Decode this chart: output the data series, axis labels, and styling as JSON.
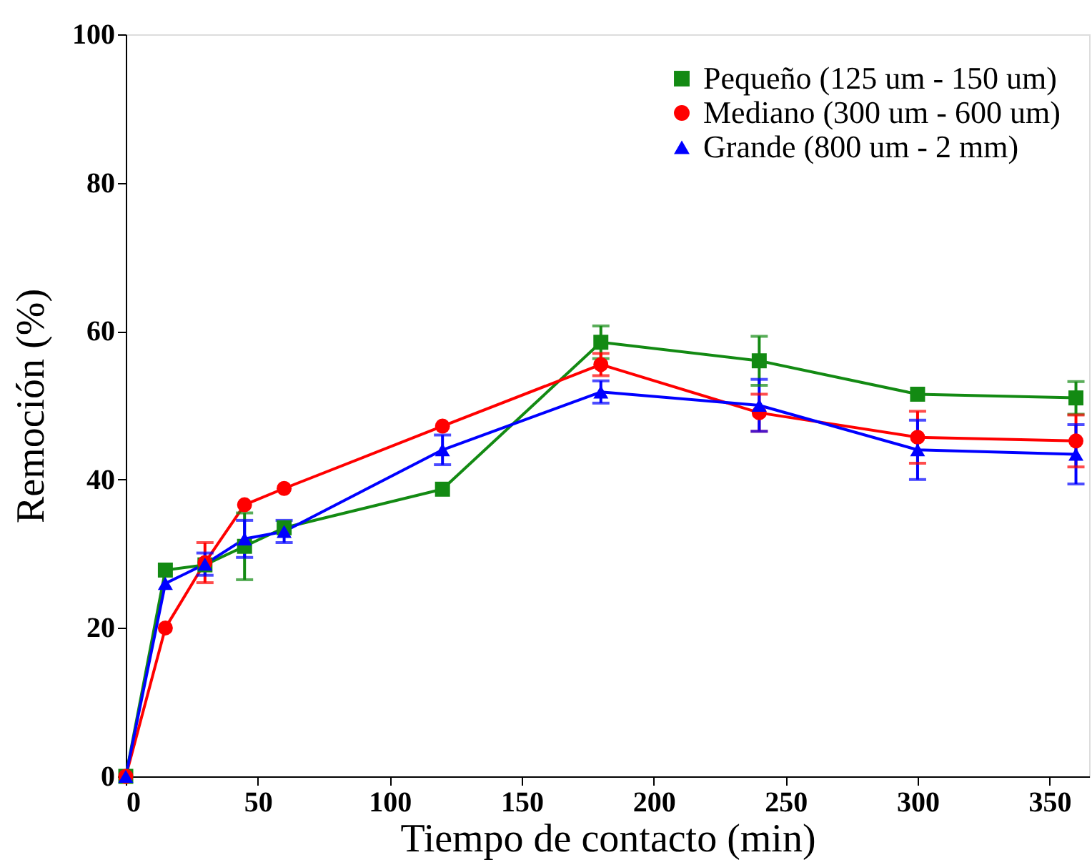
{
  "chart_data": {
    "type": "line",
    "xlabel": "Tiempo de contacto (min)",
    "ylabel": "Remoción (%)",
    "x": [
      0,
      15,
      30,
      45,
      60,
      120,
      180,
      240,
      300,
      360
    ],
    "xlim": [
      0,
      365
    ],
    "xticks": [
      0,
      50,
      100,
      150,
      200,
      250,
      300,
      350
    ],
    "ylim": [
      0,
      100
    ],
    "yticks": [
      0,
      20,
      40,
      60,
      80,
      100
    ],
    "grid": false,
    "legend": "top right",
    "line_style": "solid",
    "series": [
      {
        "name": "Pequeño (125 um - 150 um)",
        "color": "#138a13",
        "marker": "square",
        "values": [
          0,
          27.8,
          28.5,
          31,
          33.5,
          38.7,
          58.5,
          56,
          51.5,
          51
        ],
        "errors": [
          null,
          null,
          null,
          4.5,
          null,
          null,
          2.2,
          3.3,
          null,
          2.2
        ]
      },
      {
        "name": "Mediano (300 um - 600 um)",
        "color": "#ff0000",
        "marker": "circle",
        "values": [
          0,
          20,
          28.8,
          36.6,
          38.8,
          47.2,
          55.5,
          49,
          45.7,
          45.2
        ],
        "errors": [
          null,
          null,
          2.7,
          null,
          null,
          null,
          1.5,
          2.5,
          3.5,
          3.5
        ]
      },
      {
        "name": "Grande (800 um - 2 mm)",
        "color": "#0000ff",
        "marker": "triangle",
        "values": [
          0,
          26,
          28.6,
          32,
          33,
          44,
          51.8,
          50,
          44,
          43.4
        ],
        "errors": [
          null,
          null,
          1.5,
          2.5,
          1.5,
          2,
          1.5,
          3.5,
          4,
          4
        ]
      }
    ]
  }
}
